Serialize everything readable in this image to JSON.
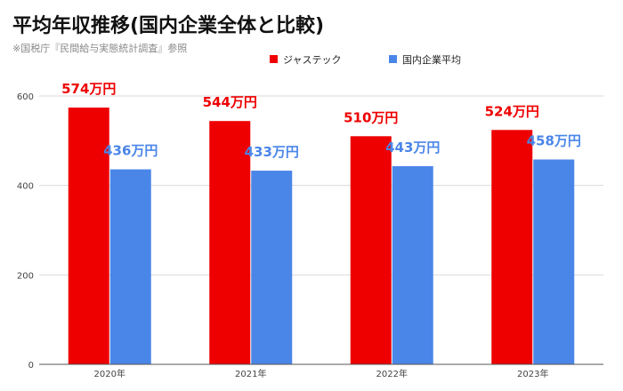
{
  "chart_data": {
    "type": "bar",
    "title": "平均年収推移(国内企業全体と比較)",
    "subtitle": "※国税庁『民間給与実態統計調査』参照",
    "categories": [
      "2020年",
      "2021年",
      "2022年",
      "2023年"
    ],
    "series": [
      {
        "name": "ジャステック",
        "color": "#ee0000",
        "values": [
          574,
          544,
          510,
          524
        ],
        "labels": [
          "574万円",
          "544万円",
          "510万円",
          "524万円"
        ]
      },
      {
        "name": "国内企業平均",
        "color": "#4a86e8",
        "values": [
          436,
          433,
          443,
          458
        ],
        "labels": [
          "436万円",
          "433万円",
          "443万円",
          "458万円"
        ]
      }
    ],
    "yticks": [
      0,
      200,
      400,
      600
    ],
    "ylim": [
      0,
      600
    ],
    "grid": true,
    "legend_position": "top-right"
  }
}
